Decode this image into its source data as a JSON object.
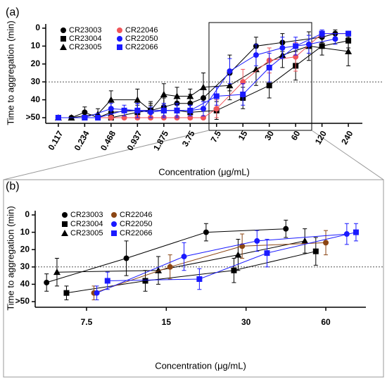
{
  "chart_data": [
    {
      "type": "line",
      "panel_label": "(a)",
      "x_label": "Concentration (μg/mL)",
      "y_label": "Time to aggregation (min)",
      "x_scale": "log",
      "xlim": [
        0.084,
        347
      ],
      "xticks": [
        0.117,
        0.234,
        0.468,
        0.937,
        1.875,
        3.75,
        7.5,
        15,
        30,
        60,
        120,
        240
      ],
      "ylim": [
        0,
        50
      ],
      "y_inverted": true,
      "yticks": [
        0,
        10,
        20,
        30,
        40,
        {
          "value": 50,
          "label": ">50"
        }
      ],
      "hline": 30,
      "series": [
        {
          "name": "CR23003",
          "color": "#000000",
          "marker": "circle",
          "x": [
            0.117,
            0.165,
            0.234,
            0.331,
            0.468,
            0.937,
            1.325,
            1.875,
            2.65,
            3.75,
            5.3,
            10.6,
            21.2,
            42.4,
            120,
            170
          ],
          "values": [
            50,
            50,
            47,
            50,
            47,
            46,
            46,
            44,
            42,
            42,
            39,
            25,
            10,
            8,
            5,
            3
          ],
          "errors": [
            0,
            0,
            3,
            0,
            3,
            4,
            4,
            5,
            4,
            5,
            5,
            10,
            5,
            5,
            3,
            2
          ]
        },
        {
          "name": "CR23004",
          "color": "#000000",
          "marker": "square",
          "x": [
            0.117,
            0.234,
            0.468,
            0.937,
            1.325,
            1.875,
            2.65,
            3.75,
            7.5,
            15,
            30,
            60,
            120,
            240
          ],
          "values": [
            50,
            50,
            50,
            47,
            46,
            46,
            46,
            47,
            46,
            39,
            32,
            21,
            10,
            7
          ],
          "errors": [
            0,
            0,
            0,
            4,
            3,
            4,
            3,
            4,
            5,
            6,
            7,
            8,
            5,
            4
          ]
        },
        {
          "name": "CR23005",
          "color": "#000000",
          "marker": "triangle",
          "x": [
            0.117,
            0.165,
            0.331,
            0.468,
            0.937,
            1.325,
            1.875,
            2.65,
            3.75,
            5.3,
            10.6,
            21.2,
            42.4,
            84.9,
            240
          ],
          "values": [
            50,
            50,
            48,
            40,
            40,
            46,
            37,
            38,
            38,
            33,
            32,
            23,
            15,
            10,
            13
          ],
          "errors": [
            0,
            0,
            3,
            5,
            6,
            5,
            6,
            5,
            4,
            8,
            8,
            9,
            7,
            8,
            8
          ]
        },
        {
          "name": "CR22046",
          "color": "#f0555a",
          "marker": "circle",
          "x": [
            0.117,
            0.234,
            0.468,
            0.662,
            0.937,
            1.325,
            1.875,
            2.65,
            3.75,
            5.3,
            7.5,
            15,
            30,
            60,
            120,
            240
          ],
          "values": [
            50,
            50,
            50,
            50,
            50,
            50,
            50,
            50,
            50,
            50,
            45,
            30,
            18,
            16,
            3,
            3
          ],
          "errors": [
            0,
            0,
            0,
            0,
            0,
            0,
            0,
            0,
            0,
            0,
            5,
            7,
            7,
            8,
            2,
            1
          ]
        },
        {
          "name": "CR22050",
          "color": "#1a1aff",
          "marker": "circle",
          "x": [
            0.117,
            0.234,
            0.468,
            0.937,
            1.325,
            1.875,
            2.65,
            3.75,
            5.3,
            10.6,
            21.2,
            42.4,
            84.9,
            170
          ],
          "values": [
            50,
            50,
            45,
            46,
            47,
            46,
            46,
            46,
            45,
            24,
            15,
            11,
            9,
            6
          ],
          "errors": [
            0,
            0,
            3,
            4,
            3,
            4,
            3,
            3,
            4,
            7,
            6,
            6,
            5,
            3
          ]
        },
        {
          "name": "CR22066",
          "color": "#1a1aff",
          "marker": "square",
          "x": [
            0.117,
            0.234,
            0.331,
            0.662,
            0.937,
            1.875,
            2.65,
            3.75,
            7.5,
            15,
            30,
            60,
            120,
            240
          ],
          "values": [
            50,
            50,
            50,
            46,
            46,
            46,
            46,
            46,
            38,
            37,
            22,
            10,
            3,
            3
          ],
          "errors": [
            0,
            0,
            0,
            3,
            4,
            3,
            4,
            3,
            5,
            6,
            8,
            5,
            2,
            1
          ]
        }
      ]
    },
    {
      "type": "line",
      "panel_label": "(b)",
      "x_label": "Concentration (μg/mL)",
      "y_label": "Time to aggregation (min)",
      "x_scale": "log",
      "xlim": [
        4.8,
        85
      ],
      "xticks": [
        7.5,
        15,
        30,
        60
      ],
      "ylim": [
        0,
        50
      ],
      "y_inverted": true,
      "yticks": [
        0,
        10,
        20,
        30,
        40,
        {
          "value": 50,
          "label": ">50"
        }
      ],
      "hline": 30,
      "series": [
        {
          "name": "CR23003",
          "color": "#000000",
          "marker": "circle",
          "x": [
            5.3,
            10.6,
            21.2,
            42.4
          ],
          "values": [
            39,
            25,
            10,
            8
          ],
          "errors": [
            5,
            10,
            5,
            5
          ]
        },
        {
          "name": "CR23004",
          "color": "#000000",
          "marker": "square",
          "x": [
            6.3,
            12.5,
            27,
            55
          ],
          "values": [
            45,
            38,
            32,
            21
          ],
          "errors": [
            4,
            6,
            7,
            8
          ]
        },
        {
          "name": "CR23005",
          "color": "#000000",
          "marker": "triangle",
          "x": [
            5.8,
            14,
            28,
            50
          ],
          "values": [
            33,
            32,
            23,
            15
          ],
          "errors": [
            8,
            8,
            9,
            7
          ]
        },
        {
          "name": "CR22046",
          "color": "#8b4513",
          "marker": "circle",
          "x": [
            8,
            15.5,
            29,
            60
          ],
          "values": [
            45,
            30,
            18,
            16
          ],
          "errors": [
            4,
            7,
            7,
            7
          ]
        },
        {
          "name": "CR22050",
          "color": "#1a1aff",
          "marker": "circle",
          "x": [
            8.2,
            17.5,
            33,
            72
          ],
          "values": [
            45,
            24,
            15,
            11
          ],
          "errors": [
            4,
            8,
            6,
            6
          ]
        },
        {
          "name": "CR22066",
          "color": "#1a1aff",
          "marker": "square",
          "x": [
            9,
            20,
            36,
            78
          ],
          "values": [
            38,
            37,
            22,
            10
          ],
          "errors": [
            5,
            6,
            8,
            5
          ]
        }
      ]
    }
  ]
}
